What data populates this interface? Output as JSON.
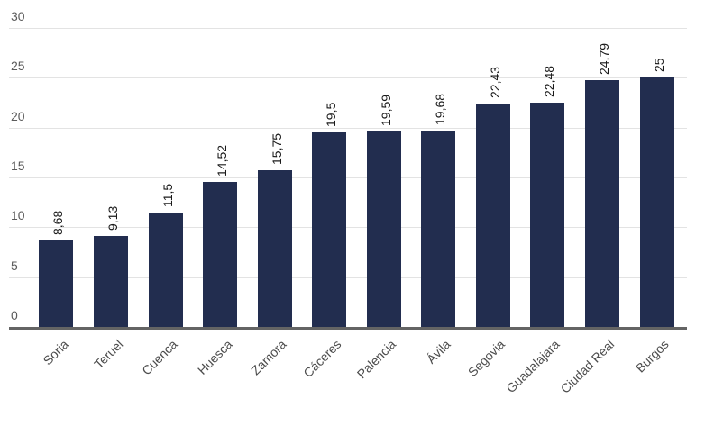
{
  "chart_data": {
    "type": "bar",
    "title": "",
    "xlabel": "",
    "ylabel": "",
    "categories": [
      "Soria",
      "Teruel",
      "Cuenca",
      "Huesca",
      "Zamora",
      "Cáceres",
      "Palencia",
      "Ávila",
      "Segovia",
      "Guadalajara",
      "Ciudad Real",
      "Burgos"
    ],
    "values": [
      8.68,
      9.13,
      11.5,
      14.52,
      15.75,
      19.5,
      19.59,
      19.68,
      22.43,
      22.48,
      24.79,
      25
    ],
    "value_labels": [
      "8,68",
      "9,13",
      "11,5",
      "14,52",
      "15,75",
      "19,5",
      "19,59",
      "19,68",
      "22,43",
      "22,48",
      "24,79",
      "25"
    ],
    "decimal_separator": ",",
    "ylim": [
      0,
      30
    ],
    "yticks": [
      0,
      5,
      10,
      15,
      20,
      25,
      30
    ],
    "grid": true,
    "legend": false,
    "x_label_rotation_deg": 45,
    "value_label_rotation_deg": 90,
    "colors": {
      "bar": "#222D4F",
      "grid_line": "#E3E3E3",
      "axis_line": "#646464",
      "y_tick_text": "#5B5B5B",
      "x_tick_text": "#4C4C4C",
      "value_label_text": "#1A1A1A",
      "background": "#FFFFFF"
    }
  }
}
